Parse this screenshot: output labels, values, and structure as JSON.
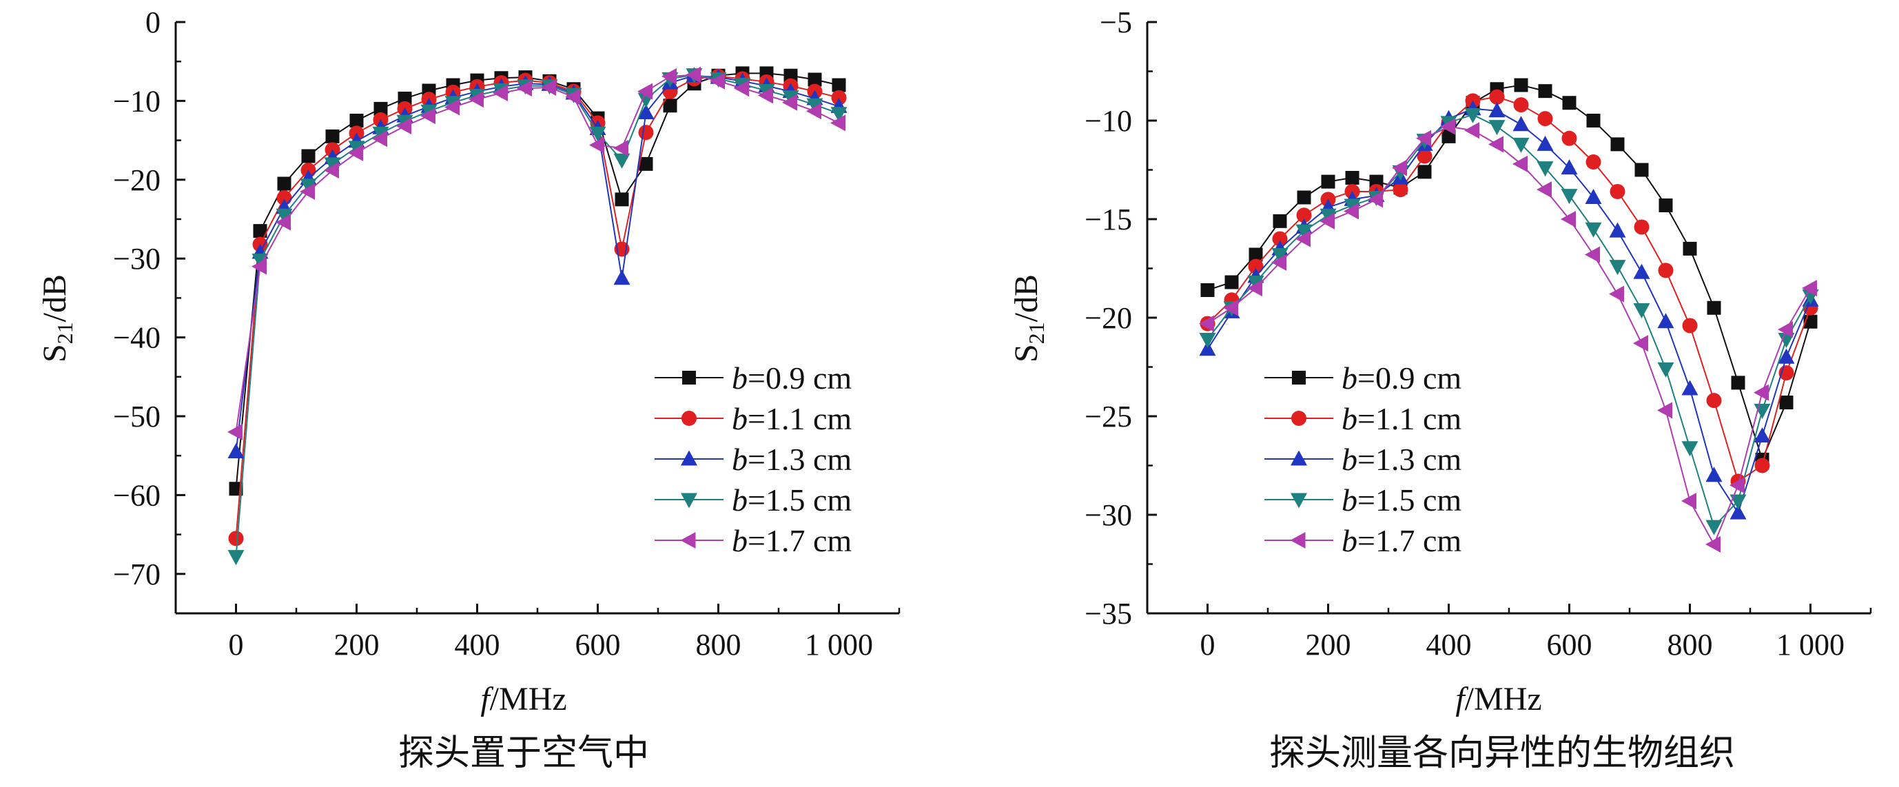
{
  "chart_data": [
    {
      "type": "line",
      "caption": "探头置于空气中",
      "xlabel_italic": "f",
      "xlabel_unit": "/MHz",
      "ylabel_main": "S",
      "ylabel_sub": "21",
      "ylabel_unit": "/dB",
      "xlim": [
        -100,
        1100
      ],
      "ylim": [
        -75,
        0
      ],
      "xticks": [
        0,
        200,
        400,
        600,
        800,
        1000
      ],
      "xtick_labels": [
        "0",
        "200",
        "400",
        "600",
        "800",
        "1 000"
      ],
      "yticks": [
        0,
        -10,
        -20,
        -30,
        -40,
        -50,
        -60,
        -70
      ],
      "ytick_labels": [
        "0",
        "−10",
        "−20",
        "−30",
        "−40",
        "−50",
        "−60",
        "−70"
      ],
      "legend_position": "bottom-right",
      "x": [
        0,
        40,
        80,
        120,
        160,
        200,
        240,
        280,
        320,
        360,
        400,
        440,
        480,
        520,
        560,
        600,
        640,
        680,
        720,
        760,
        800,
        840,
        880,
        920,
        960,
        1000
      ],
      "series": [
        {
          "label_var": "b",
          "label_text": "=0.9 cm",
          "color": "#111111",
          "marker": "square",
          "values": [
            -59.2,
            -26.5,
            -20.5,
            -17,
            -14.5,
            -12.5,
            -11,
            -9.7,
            -8.7,
            -8,
            -7.4,
            -7.1,
            -7,
            -7.5,
            -8.5,
            -12.2,
            -22.5,
            -18,
            -10.6,
            -7.8,
            -6.8,
            -6.5,
            -6.5,
            -6.8,
            -7.3,
            -8
          ]
        },
        {
          "label_var": "b",
          "label_text": "=1.1 cm",
          "color": "#e02020",
          "marker": "circle",
          "values": [
            -65.5,
            -28.2,
            -22.3,
            -18.8,
            -16.2,
            -14.1,
            -12.4,
            -11,
            -9.8,
            -8.9,
            -8.2,
            -7.7,
            -7.4,
            -7.7,
            -8.8,
            -12.8,
            -28.8,
            -14,
            -8.8,
            -7.2,
            -6.9,
            -7.2,
            -7.6,
            -8.1,
            -8.8,
            -9.6
          ]
        },
        {
          "label_var": "b",
          "label_text": "=1.3 cm",
          "color": "#2035c0",
          "marker": "triangle-up",
          "values": [
            -54.5,
            -29.2,
            -23.5,
            -19.8,
            -17.2,
            -15.1,
            -13.4,
            -11.9,
            -10.7,
            -9.6,
            -8.8,
            -8.2,
            -7.8,
            -7.9,
            -9,
            -13.5,
            -32.5,
            -11.5,
            -7.7,
            -6.8,
            -7,
            -7.5,
            -8.1,
            -8.8,
            -9.7,
            -10.7
          ]
        },
        {
          "label_var": "b",
          "label_text": "=1.5 cm",
          "color": "#1f8080",
          "marker": "triangle-down",
          "values": [
            -67.8,
            -30.2,
            -24.5,
            -20.7,
            -18,
            -15.9,
            -14.1,
            -12.6,
            -11.3,
            -10.2,
            -9.3,
            -8.6,
            -8.1,
            -8.1,
            -9.2,
            -14.1,
            -17.5,
            -9.8,
            -7.2,
            -6.7,
            -7.2,
            -7.9,
            -8.7,
            -9.5,
            -10.5,
            -11.6
          ]
        },
        {
          "label_var": "b",
          "label_text": "=1.7 cm",
          "color": "#b03cb0",
          "marker": "triangle-left",
          "values": [
            -52,
            -31,
            -25.4,
            -21.5,
            -18.8,
            -16.6,
            -14.8,
            -13.2,
            -11.9,
            -10.8,
            -9.8,
            -9,
            -8.4,
            -8.3,
            -9.5,
            -15.6,
            -16,
            -8.8,
            -6.9,
            -6.7,
            -7.5,
            -8.4,
            -9.3,
            -10.2,
            -11.3,
            -12.8
          ]
        }
      ]
    },
    {
      "type": "line",
      "caption": "探头测量各向异性的生物组织",
      "xlabel_italic": "f",
      "xlabel_unit": "/MHz",
      "ylabel_main": "S",
      "ylabel_sub": "21",
      "ylabel_unit": "/dB",
      "xlim": [
        -100,
        1100
      ],
      "ylim": [
        -35,
        -5
      ],
      "xticks": [
        0,
        200,
        400,
        600,
        800,
        1000
      ],
      "xtick_labels": [
        "0",
        "200",
        "400",
        "600",
        "800",
        "1 000"
      ],
      "yticks": [
        -5,
        -10,
        -15,
        -20,
        -25,
        -30,
        -35
      ],
      "ytick_labels": [
        "−5",
        "−10",
        "−15",
        "−20",
        "−25",
        "−30",
        "−35"
      ],
      "legend_position": "bottom-left",
      "x": [
        0,
        40,
        80,
        120,
        160,
        200,
        240,
        280,
        320,
        360,
        400,
        440,
        480,
        520,
        560,
        600,
        640,
        680,
        720,
        760,
        800,
        840,
        880,
        920,
        960,
        1000
      ],
      "series": [
        {
          "label_var": "b",
          "label_text": "=0.9 cm",
          "color": "#111111",
          "marker": "square",
          "values": [
            -18.6,
            -18.2,
            -16.8,
            -15.1,
            -13.9,
            -13.1,
            -12.9,
            -13.1,
            -13.4,
            -12.6,
            -10.8,
            -9.1,
            -8.4,
            -8.2,
            -8.5,
            -9.1,
            -10,
            -11.2,
            -12.5,
            -14.3,
            -16.5,
            -19.5,
            -23.3,
            -27.2,
            -24.3,
            -20.2
          ]
        },
        {
          "label_var": "b",
          "label_text": "=1.1 cm",
          "color": "#e02020",
          "marker": "circle",
          "values": [
            -20.3,
            -19.1,
            -17.4,
            -16,
            -14.8,
            -14,
            -13.6,
            -13.6,
            -13.5,
            -11.8,
            -10.1,
            -9,
            -8.8,
            -9.2,
            -9.9,
            -10.9,
            -12.1,
            -13.6,
            -15.4,
            -17.6,
            -20.4,
            -24.2,
            -28.3,
            -27.5,
            -22.8,
            -19.5
          ]
        },
        {
          "label_var": "b",
          "label_text": "=1.3 cm",
          "color": "#2035c0",
          "marker": "triangle-up",
          "values": [
            -21.6,
            -19.7,
            -17.9,
            -16.5,
            -15.4,
            -14.4,
            -14,
            -13.8,
            -12.9,
            -11.2,
            -9.9,
            -9.4,
            -9.5,
            -10.2,
            -11.2,
            -12.4,
            -13.9,
            -15.6,
            -17.7,
            -20.2,
            -23.6,
            -28,
            -29.9,
            -26,
            -22,
            -19.1
          ]
        },
        {
          "label_var": "b",
          "label_text": "=1.5 cm",
          "color": "#1f8080",
          "marker": "triangle-down",
          "values": [
            -21.1,
            -19.5,
            -18.2,
            -16.8,
            -15.6,
            -14.8,
            -14.3,
            -13.9,
            -12.6,
            -11,
            -10.1,
            -9.7,
            -10.3,
            -11.2,
            -12.4,
            -13.8,
            -15.5,
            -17.4,
            -19.6,
            -22.6,
            -26.6,
            -30.6,
            -29.3,
            -24.7,
            -21.1,
            -18.9
          ]
        },
        {
          "label_var": "b",
          "label_text": "=1.7 cm",
          "color": "#b03cb0",
          "marker": "triangle-left",
          "values": [
            -20.3,
            -19.5,
            -18.5,
            -17.2,
            -16,
            -15.1,
            -14.6,
            -14,
            -12.4,
            -10.9,
            -10.3,
            -10.5,
            -11.2,
            -12.2,
            -13.5,
            -15,
            -16.8,
            -18.8,
            -21.3,
            -24.7,
            -29.3,
            -31.5,
            -28.5,
            -23.8,
            -20.6,
            -18.5
          ]
        }
      ]
    }
  ]
}
